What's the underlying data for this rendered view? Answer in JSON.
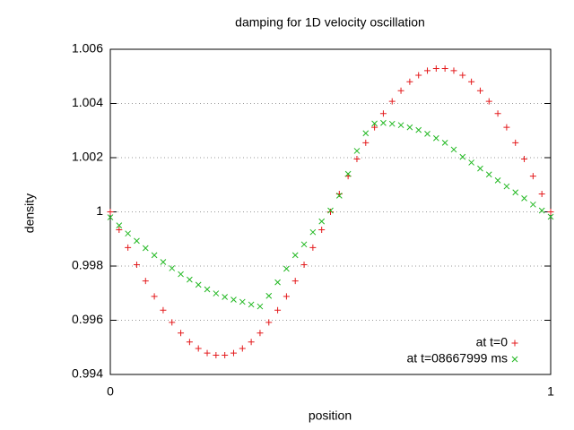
{
  "chart_data": {
    "type": "scatter",
    "title": "damping for 1D velocity oscillation",
    "x_label": "position",
    "y_label": "density",
    "x": [
      0,
      0.02,
      0.04,
      0.06,
      0.08,
      0.1,
      0.12,
      0.14,
      0.16,
      0.18,
      0.2,
      0.22,
      0.24,
      0.26,
      0.28,
      0.3,
      0.32,
      0.34,
      0.36,
      0.38,
      0.4,
      0.42,
      0.44,
      0.46,
      0.48,
      0.5,
      0.52,
      0.54,
      0.56,
      0.58,
      0.6,
      0.62,
      0.64,
      0.66,
      0.68,
      0.7,
      0.72,
      0.74,
      0.76,
      0.78,
      0.8,
      0.82,
      0.84,
      0.86,
      0.88,
      0.9,
      0.92,
      0.94,
      0.96,
      0.98,
      1
    ],
    "series": [
      {
        "name": "at t=0",
        "color": "#e41a1c",
        "marker": "plus",
        "values": [
          1,
          0.99934,
          0.99868,
          0.99805,
          0.99745,
          0.99688,
          0.99637,
          0.99592,
          0.99553,
          0.9952,
          0.99496,
          0.99479,
          0.99471,
          0.99471,
          0.99479,
          0.99496,
          0.9952,
          0.99553,
          0.99592,
          0.99637,
          0.99688,
          0.99745,
          0.99805,
          0.99868,
          0.99934,
          1,
          1.00066,
          1.00132,
          1.00195,
          1.00255,
          1.00312,
          1.00363,
          1.00408,
          1.00447,
          1.0048,
          1.00504,
          1.00521,
          1.00529,
          1.00529,
          1.00521,
          1.00504,
          1.0048,
          1.00447,
          1.00408,
          1.00363,
          1.00312,
          1.00255,
          1.00195,
          1.00132,
          1.00066,
          1
        ]
      },
      {
        "name": "at t=08667999 ms",
        "color": "#22b822",
        "marker": "cross",
        "values": [
          0.9998,
          0.9995,
          0.9992,
          0.99893,
          0.99866,
          0.9984,
          0.99815,
          0.99792,
          0.9977,
          0.9975,
          0.99731,
          0.99714,
          0.99699,
          0.99686,
          0.99676,
          0.99668,
          0.99658,
          0.99651,
          0.9969,
          0.9974,
          0.9979,
          0.9984,
          0.9988,
          0.99925,
          0.99965,
          1.00005,
          1.0006,
          1.0014,
          1.00225,
          1.0029,
          1.00326,
          1.00328,
          1.00325,
          1.0032,
          1.00312,
          1.00302,
          1.00288,
          1.00272,
          1.00255,
          1.0023,
          1.00203,
          1.00182,
          1.0016,
          1.00138,
          1.00116,
          1.00094,
          1.00072,
          1.0005,
          1.00027,
          1.00005,
          0.99982
        ]
      }
    ],
    "xlim": [
      0,
      1
    ],
    "xticks": [
      0,
      1
    ],
    "ylim": [
      0.994,
      1.006
    ],
    "yticks": [
      0.994,
      0.996,
      0.998,
      1,
      1.002,
      1.004,
      1.006
    ],
    "grid": true,
    "legend": "bottom-right"
  }
}
